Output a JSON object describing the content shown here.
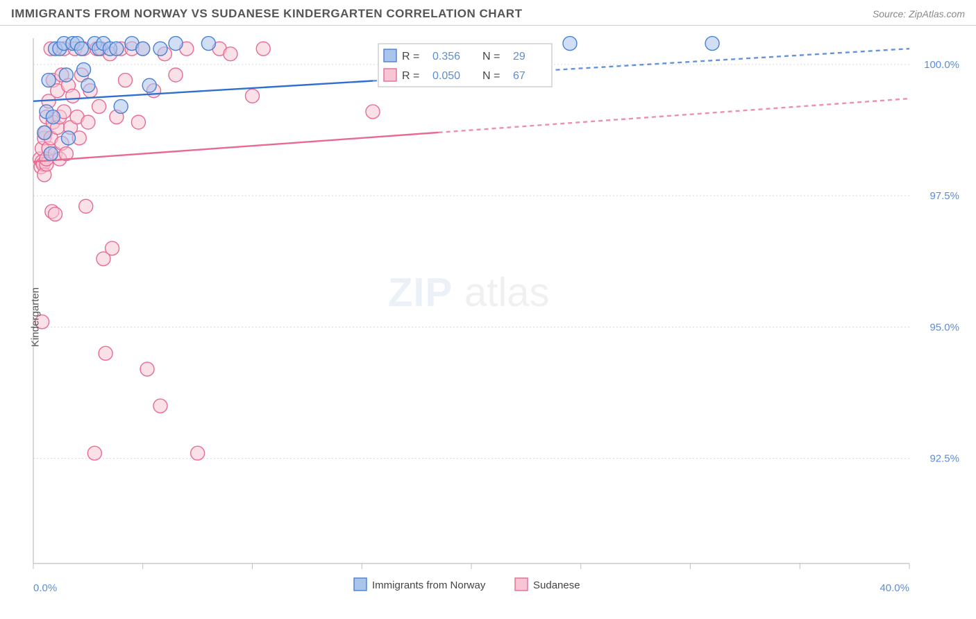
{
  "title": "IMMIGRANTS FROM NORWAY VS SUDANESE KINDERGARTEN CORRELATION CHART",
  "source_label": "Source:",
  "source_name": "ZipAtlas.com",
  "ylabel": "Kindergarten",
  "watermark_a": "ZIP",
  "watermark_b": "atlas",
  "chart": {
    "type": "scatter-correlation",
    "background_color": "#ffffff",
    "grid_color": "#d8d8d8",
    "axis_color": "#bfbfbf",
    "tick_label_color": "#5b8dd6",
    "xlim": [
      0,
      40
    ],
    "ylim": [
      90.5,
      100.5
    ],
    "xtick_positions": [
      0,
      5,
      10,
      15,
      20,
      25,
      30,
      35,
      40
    ],
    "xtick_labels_shown": {
      "0": "0.0%",
      "40": "40.0%"
    },
    "ytick_positions": [
      92.5,
      95.0,
      97.5,
      100.0
    ],
    "ytick_labels": [
      "92.5%",
      "95.0%",
      "97.5%",
      "100.0%"
    ],
    "marker_radius": 10,
    "marker_stroke_width": 1.4,
    "line_width": 2.4,
    "series": {
      "norway": {
        "label": "Immigrants from Norway",
        "color_fill": "#a9c5ec",
        "color_stroke": "#4a7fd1",
        "line_color": "#2f6fd0",
        "R": "0.356",
        "N": "29",
        "trend": {
          "x1": 0,
          "y1": 99.3,
          "x2": 40,
          "y2": 100.3,
          "solid_until_x": 15.5
        },
        "points": [
          [
            0.5,
            98.7
          ],
          [
            0.6,
            99.1
          ],
          [
            0.7,
            99.7
          ],
          [
            0.8,
            98.3
          ],
          [
            0.9,
            99.0
          ],
          [
            1.0,
            100.3
          ],
          [
            1.2,
            100.3
          ],
          [
            1.4,
            100.4
          ],
          [
            1.5,
            99.8
          ],
          [
            1.6,
            98.6
          ],
          [
            1.8,
            100.4
          ],
          [
            2.0,
            100.4
          ],
          [
            2.2,
            100.3
          ],
          [
            2.3,
            99.9
          ],
          [
            2.5,
            99.6
          ],
          [
            2.8,
            100.4
          ],
          [
            3.0,
            100.3
          ],
          [
            3.2,
            100.4
          ],
          [
            3.5,
            100.3
          ],
          [
            3.8,
            100.3
          ],
          [
            4.0,
            99.2
          ],
          [
            4.5,
            100.4
          ],
          [
            5.0,
            100.3
          ],
          [
            5.3,
            99.6
          ],
          [
            5.8,
            100.3
          ],
          [
            6.5,
            100.4
          ],
          [
            8.0,
            100.4
          ],
          [
            24.5,
            100.4
          ],
          [
            31.0,
            100.4
          ]
        ]
      },
      "sudanese": {
        "label": "Sudanese",
        "color_fill": "#f6c6d4",
        "color_stroke": "#e86a94",
        "line_color": "#e86a94",
        "R": "0.050",
        "N": "67",
        "trend": {
          "x1": 0,
          "y1": 98.15,
          "x2": 40,
          "y2": 99.35,
          "solid_until_x": 18.5
        },
        "points": [
          [
            0.3,
            98.2
          ],
          [
            0.35,
            98.05
          ],
          [
            0.4,
            98.15
          ],
          [
            0.4,
            98.4
          ],
          [
            0.45,
            98.1
          ],
          [
            0.4,
            95.1
          ],
          [
            0.5,
            97.9
          ],
          [
            0.5,
            98.6
          ],
          [
            0.55,
            98.7
          ],
          [
            0.6,
            98.1
          ],
          [
            0.6,
            99.0
          ],
          [
            0.6,
            98.2
          ],
          [
            0.7,
            99.3
          ],
          [
            0.7,
            98.4
          ],
          [
            0.8,
            100.3
          ],
          [
            0.8,
            98.6
          ],
          [
            0.85,
            97.2
          ],
          [
            0.9,
            98.9
          ],
          [
            0.9,
            99.7
          ],
          [
            1.0,
            97.15
          ],
          [
            1.0,
            98.3
          ],
          [
            1.1,
            99.5
          ],
          [
            1.1,
            98.8
          ],
          [
            1.2,
            99.0
          ],
          [
            1.2,
            98.2
          ],
          [
            1.3,
            99.8
          ],
          [
            1.3,
            98.5
          ],
          [
            1.4,
            100.3
          ],
          [
            1.4,
            99.1
          ],
          [
            1.5,
            98.3
          ],
          [
            1.6,
            99.6
          ],
          [
            1.7,
            98.8
          ],
          [
            1.8,
            99.4
          ],
          [
            1.9,
            100.3
          ],
          [
            2.0,
            99.0
          ],
          [
            2.1,
            98.6
          ],
          [
            2.2,
            99.8
          ],
          [
            2.3,
            100.3
          ],
          [
            2.4,
            97.3
          ],
          [
            2.5,
            98.9
          ],
          [
            2.6,
            99.5
          ],
          [
            2.8,
            92.6
          ],
          [
            2.9,
            100.3
          ],
          [
            3.0,
            99.2
          ],
          [
            3.1,
            100.3
          ],
          [
            3.2,
            96.3
          ],
          [
            3.3,
            94.5
          ],
          [
            3.5,
            100.2
          ],
          [
            3.6,
            96.5
          ],
          [
            3.8,
            99.0
          ],
          [
            4.0,
            100.3
          ],
          [
            4.2,
            99.7
          ],
          [
            4.5,
            100.3
          ],
          [
            4.8,
            98.9
          ],
          [
            5.0,
            100.3
          ],
          [
            5.2,
            94.2
          ],
          [
            5.5,
            99.5
          ],
          [
            5.8,
            93.5
          ],
          [
            6.0,
            100.2
          ],
          [
            6.5,
            99.8
          ],
          [
            7.0,
            100.3
          ],
          [
            7.5,
            92.6
          ],
          [
            8.5,
            100.3
          ],
          [
            9.0,
            100.2
          ],
          [
            10.0,
            99.4
          ],
          [
            10.5,
            100.3
          ],
          [
            15.5,
            99.1
          ]
        ]
      }
    },
    "legend_box": {
      "border_color": "#b8b8b8",
      "bg_color": "#ffffff",
      "swatch_size": 18
    },
    "bottom_legend": {
      "swatch_size": 18
    }
  },
  "legend_labels": {
    "R": "R",
    "N": "N",
    "eq": "="
  }
}
